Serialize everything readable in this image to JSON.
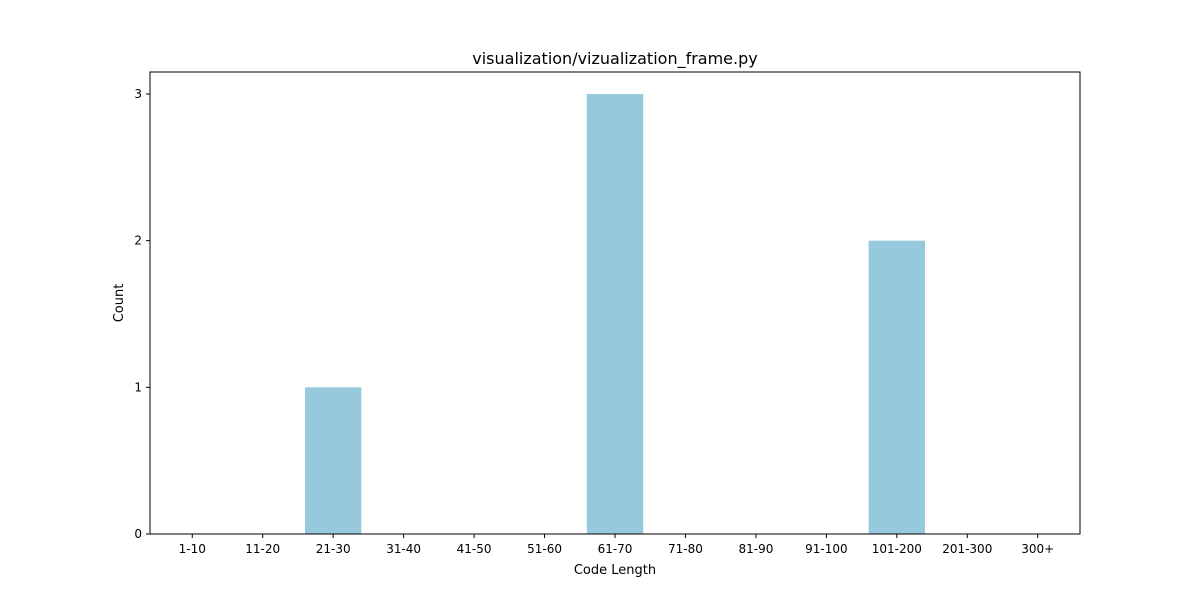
{
  "chart_data": {
    "type": "bar",
    "title": "visualization/vizualization_frame.py",
    "xlabel": "Code Length",
    "ylabel": "Count",
    "categories": [
      "1-10",
      "11-20",
      "21-30",
      "31-40",
      "41-50",
      "51-60",
      "61-70",
      "71-80",
      "81-90",
      "91-100",
      "101-200",
      "201-300",
      "300+"
    ],
    "values": [
      0,
      0,
      1,
      0,
      0,
      0,
      3,
      0,
      0,
      0,
      2,
      0,
      0
    ],
    "yticks": [
      0,
      1,
      2,
      3
    ],
    "ylim": [
      0,
      3.15
    ],
    "grid": false,
    "legend": "none",
    "bar_color": "#96c9dc",
    "axis_color": "#000000"
  }
}
